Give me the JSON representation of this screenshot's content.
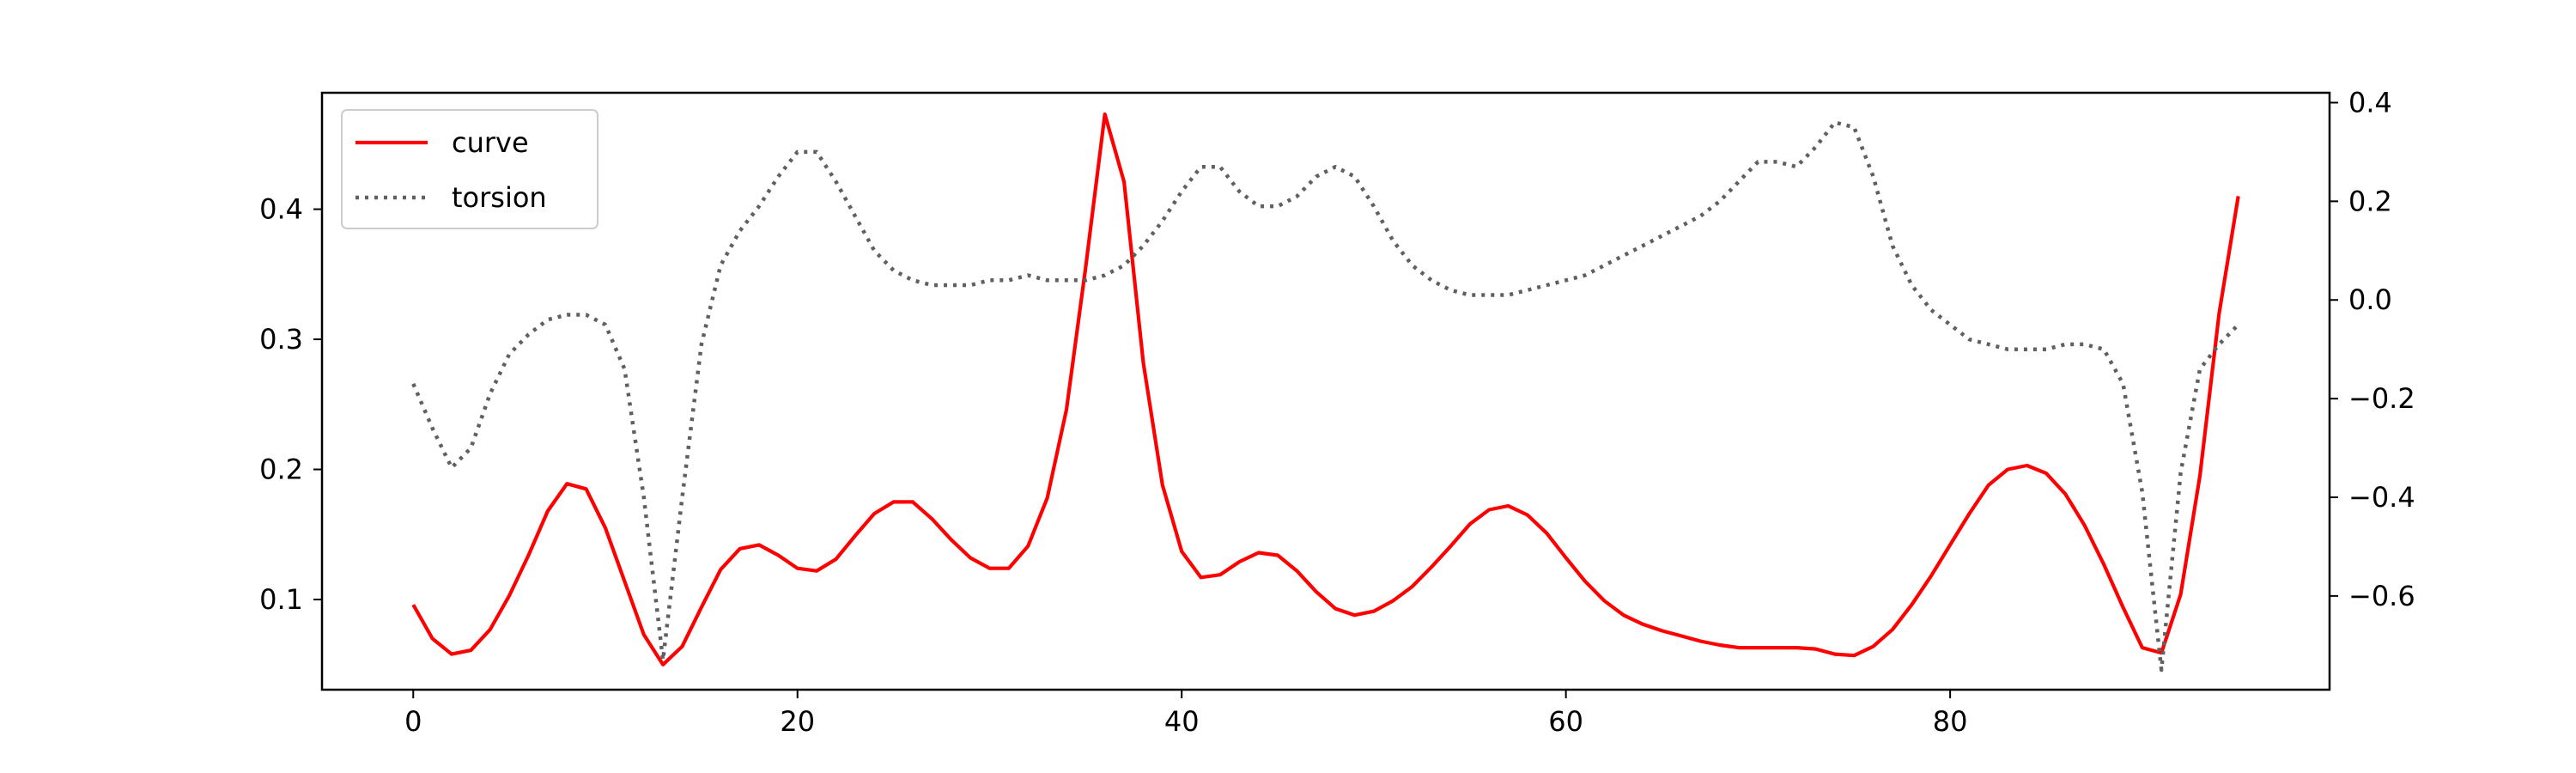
{
  "chart_data": {
    "type": "line",
    "grid": false,
    "legend_position": "upper-left",
    "x_ticks": [
      0,
      20,
      40,
      60,
      80
    ],
    "xlim": [
      -4.75,
      99.75
    ],
    "left_axis": {
      "ylim": [
        0.0307,
        0.4895
      ],
      "ticks": [
        0.1,
        0.2,
        0.3,
        0.4
      ],
      "tick_labels": [
        "0.1",
        "0.2",
        "0.3",
        "0.4"
      ]
    },
    "right_axis": {
      "ylim": [
        -0.79,
        0.42
      ],
      "ticks": [
        -0.6,
        -0.4,
        -0.2,
        0.0,
        0.2,
        0.4
      ],
      "tick_labels": [
        "−0.6",
        "−0.4",
        "−0.2",
        "0.0",
        "0.2",
        "0.4"
      ]
    },
    "series": [
      {
        "name": "curve",
        "axis": "left",
        "color": "#ff0000",
        "style": "solid",
        "x": [
          0,
          1,
          2,
          3,
          4,
          5,
          6,
          7,
          8,
          9,
          10,
          11,
          12,
          13,
          14,
          15,
          16,
          17,
          18,
          19,
          20,
          21,
          22,
          23,
          24,
          25,
          26,
          27,
          28,
          29,
          30,
          31,
          32,
          33,
          34,
          35,
          36,
          37,
          38,
          39,
          40,
          41,
          42,
          43,
          44,
          45,
          46,
          47,
          48,
          49,
          50,
          51,
          52,
          53,
          54,
          55,
          56,
          57,
          58,
          59,
          60,
          61,
          62,
          63,
          64,
          65,
          66,
          67,
          68,
          69,
          70,
          71,
          72,
          73,
          74,
          75,
          76,
          77,
          78,
          79,
          80,
          81,
          82,
          83,
          84,
          85,
          86,
          87,
          88,
          89,
          90,
          91,
          92,
          93,
          94,
          95
        ],
        "y": [
          0.096,
          0.07,
          0.058,
          0.061,
          0.077,
          0.103,
          0.134,
          0.168,
          0.189,
          0.185,
          0.155,
          0.114,
          0.073,
          0.05,
          0.064,
          0.094,
          0.123,
          0.139,
          0.142,
          0.134,
          0.124,
          0.122,
          0.131,
          0.149,
          0.166,
          0.175,
          0.175,
          0.162,
          0.146,
          0.132,
          0.124,
          0.124,
          0.141,
          0.178,
          0.246,
          0.355,
          0.473,
          0.421,
          0.282,
          0.188,
          0.137,
          0.117,
          0.119,
          0.129,
          0.136,
          0.134,
          0.122,
          0.106,
          0.093,
          0.088,
          0.091,
          0.099,
          0.11,
          0.125,
          0.141,
          0.158,
          0.169,
          0.172,
          0.165,
          0.151,
          0.132,
          0.114,
          0.099,
          0.088,
          0.081,
          0.076,
          0.072,
          0.068,
          0.065,
          0.063,
          0.063,
          0.063,
          0.063,
          0.062,
          0.058,
          0.057,
          0.064,
          0.077,
          0.096,
          0.118,
          0.142,
          0.166,
          0.188,
          0.2,
          0.203,
          0.197,
          0.181,
          0.157,
          0.127,
          0.094,
          0.063,
          0.059,
          0.104,
          0.195,
          0.32,
          0.41
        ]
      },
      {
        "name": "torsion",
        "axis": "right",
        "color": "#606060",
        "style": "dotted",
        "x": [
          0,
          1,
          2,
          3,
          4,
          5,
          6,
          7,
          8,
          9,
          10,
          11,
          12,
          13,
          14,
          15,
          16,
          17,
          18,
          19,
          20,
          21,
          22,
          23,
          24,
          25,
          26,
          27,
          28,
          29,
          30,
          31,
          32,
          33,
          34,
          35,
          36,
          37,
          38,
          39,
          40,
          41,
          42,
          43,
          44,
          45,
          46,
          47,
          48,
          49,
          50,
          51,
          52,
          53,
          54,
          55,
          56,
          57,
          58,
          59,
          60,
          61,
          62,
          63,
          64,
          65,
          66,
          67,
          68,
          69,
          70,
          71,
          72,
          73,
          74,
          75,
          76,
          77,
          78,
          79,
          80,
          81,
          82,
          83,
          84,
          85,
          86,
          87,
          88,
          89,
          90,
          91,
          92,
          93,
          94,
          95
        ],
        "y": [
          -0.17,
          -0.26,
          -0.34,
          -0.3,
          -0.19,
          -0.11,
          -0.07,
          -0.04,
          -0.03,
          -0.03,
          -0.05,
          -0.14,
          -0.4,
          -0.73,
          -0.4,
          -0.09,
          0.07,
          0.14,
          0.19,
          0.25,
          0.3,
          0.3,
          0.24,
          0.17,
          0.1,
          0.06,
          0.04,
          0.03,
          0.03,
          0.03,
          0.04,
          0.04,
          0.05,
          0.04,
          0.04,
          0.04,
          0.05,
          0.07,
          0.11,
          0.16,
          0.22,
          0.27,
          0.27,
          0.22,
          0.19,
          0.19,
          0.21,
          0.25,
          0.27,
          0.25,
          0.19,
          0.12,
          0.07,
          0.04,
          0.02,
          0.01,
          0.01,
          0.01,
          0.02,
          0.03,
          0.04,
          0.05,
          0.07,
          0.09,
          0.11,
          0.13,
          0.15,
          0.17,
          0.2,
          0.24,
          0.28,
          0.28,
          0.27,
          0.31,
          0.36,
          0.35,
          0.25,
          0.11,
          0.03,
          -0.02,
          -0.05,
          -0.08,
          -0.09,
          -0.1,
          -0.1,
          -0.1,
          -0.09,
          -0.09,
          -0.1,
          -0.17,
          -0.39,
          -0.75,
          -0.35,
          -0.14,
          -0.09,
          -0.05
        ]
      }
    ]
  }
}
